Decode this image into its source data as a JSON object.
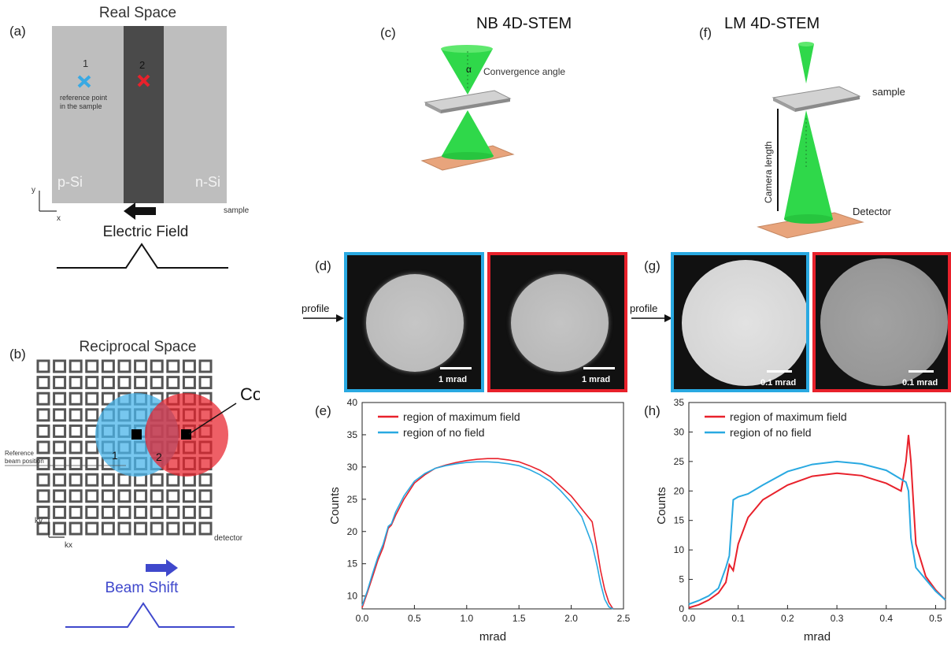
{
  "panels": {
    "a": {
      "label": "(a)",
      "title": "Real Space",
      "point1": "1",
      "point2": "2",
      "ref_note_line1": "reference point",
      "ref_note_line2": "in the sample",
      "p_label": "p-Si",
      "n_label": "n-Si",
      "axis_y": "y",
      "axis_x": "x",
      "sample": "sample",
      "field_label": "Electric Field"
    },
    "b": {
      "label": "(b)",
      "title": "Reciprocal Space",
      "com": "CoM",
      "ref_line1": "Reference",
      "ref_line2": "beam position",
      "disk1": "1",
      "disk2": "2",
      "axis_ky": "ky",
      "axis_kx": "kx",
      "detector": "detector",
      "shift_label": "Beam Shift"
    },
    "c": {
      "label": "(c)",
      "title": "NB 4D-STEM",
      "alpha": "α",
      "convergence": "Convergence angle"
    },
    "f": {
      "label": "(f)",
      "title": "LM 4D-STEM",
      "sample": "sample",
      "camera_length": "Camera length",
      "detector": "Detector"
    },
    "d": {
      "label": "(d)",
      "profile": "profile",
      "scale1": "1 mrad",
      "scale2": "1 mrad"
    },
    "g": {
      "label": "(g)",
      "profile": "profile",
      "scale1": "0.1 mrad",
      "scale2": "0.1 mrad"
    },
    "e": {
      "label": "(e)"
    },
    "h": {
      "label": "(h)"
    }
  },
  "colors": {
    "blue_frame": "#29a9e1",
    "red_frame": "#e8212b",
    "beam_green": "#2fd84a",
    "sample_gray": "#bdbdbd",
    "detector_orange": "#e8a47c",
    "shift_blue": "#3f48cc"
  },
  "chart_data": [
    {
      "type": "line",
      "panel": "e",
      "xlabel": "mrad",
      "ylabel": "Counts",
      "xlim": [
        0,
        2.5
      ],
      "ylim": [
        8,
        40
      ],
      "xticks": [
        "0.0",
        "0.5",
        "1.0",
        "1.5",
        "2.0",
        "2.5"
      ],
      "yticks": [
        "10",
        "15",
        "20",
        "25",
        "30",
        "35",
        "40"
      ],
      "legend_position": "top-left",
      "series": [
        {
          "name": "region of maximum field",
          "color": "#e8212b",
          "x": [
            0.0,
            0.05,
            0.1,
            0.15,
            0.2,
            0.25,
            0.28,
            0.32,
            0.4,
            0.5,
            0.6,
            0.7,
            0.8,
            0.9,
            1.0,
            1.1,
            1.2,
            1.3,
            1.4,
            1.5,
            1.6,
            1.7,
            1.8,
            1.9,
            2.0,
            2.1,
            2.2,
            2.25,
            2.28,
            2.32,
            2.36,
            2.4
          ],
          "y": [
            8.2,
            10.5,
            13,
            15.5,
            17.5,
            20.5,
            21,
            22.5,
            25,
            27.5,
            28.8,
            29.8,
            30.3,
            30.7,
            31.0,
            31.2,
            31.3,
            31.3,
            31.1,
            30.8,
            30.2,
            29.5,
            28.5,
            27.0,
            25.5,
            23.5,
            21.5,
            17,
            14,
            11,
            9,
            8
          ]
        },
        {
          "name": "region of no field",
          "color": "#29a9e1",
          "x": [
            0.0,
            0.05,
            0.1,
            0.15,
            0.2,
            0.25,
            0.28,
            0.32,
            0.4,
            0.5,
            0.6,
            0.7,
            0.8,
            0.9,
            1.0,
            1.1,
            1.2,
            1.3,
            1.4,
            1.5,
            1.6,
            1.7,
            1.8,
            1.9,
            2.0,
            2.1,
            2.2,
            2.25,
            2.28,
            2.32,
            2.36,
            2.4
          ],
          "y": [
            8.5,
            10.8,
            13.5,
            16,
            18,
            20.8,
            21.2,
            23,
            25.5,
            27.8,
            29,
            29.8,
            30.2,
            30.5,
            30.7,
            30.8,
            30.8,
            30.7,
            30.5,
            30.2,
            29.6,
            28.8,
            27.8,
            26.3,
            24.5,
            22.3,
            18,
            14.5,
            12,
            9.5,
            8.3,
            8
          ]
        }
      ]
    },
    {
      "type": "line",
      "panel": "h",
      "xlabel": "mrad",
      "ylabel": "Counts",
      "xlim": [
        0,
        0.52
      ],
      "ylim": [
        0,
        35
      ],
      "xticks": [
        "0.0",
        "0.1",
        "0.2",
        "0.3",
        "0.4",
        "0.5"
      ],
      "yticks": [
        "0",
        "5",
        "10",
        "15",
        "20",
        "25",
        "30",
        "35"
      ],
      "legend_position": "top-left",
      "series": [
        {
          "name": "region of maximum field",
          "color": "#e8212b",
          "x": [
            0.0,
            0.02,
            0.04,
            0.06,
            0.075,
            0.082,
            0.09,
            0.1,
            0.12,
            0.15,
            0.2,
            0.25,
            0.3,
            0.35,
            0.4,
            0.43,
            0.44,
            0.445,
            0.45,
            0.46,
            0.48,
            0.5,
            0.52
          ],
          "y": [
            0.2,
            0.7,
            1.5,
            2.7,
            4.5,
            7.5,
            6.5,
            11,
            15.5,
            18.5,
            21,
            22.5,
            23,
            22.6,
            21.3,
            20,
            25,
            29.5,
            25,
            11,
            5.5,
            3.2,
            1.5
          ]
        },
        {
          "name": "region of no field",
          "color": "#29a9e1",
          "x": [
            0.0,
            0.02,
            0.04,
            0.06,
            0.075,
            0.082,
            0.09,
            0.1,
            0.12,
            0.15,
            0.2,
            0.25,
            0.3,
            0.35,
            0.4,
            0.43,
            0.44,
            0.445,
            0.45,
            0.46,
            0.48,
            0.5,
            0.52
          ],
          "y": [
            0.8,
            1.4,
            2.2,
            3.5,
            7,
            9,
            18.5,
            19,
            19.5,
            21,
            23.3,
            24.5,
            25,
            24.6,
            23.5,
            22,
            21.5,
            20,
            12,
            7,
            5,
            3,
            1.5
          ]
        }
      ]
    }
  ]
}
